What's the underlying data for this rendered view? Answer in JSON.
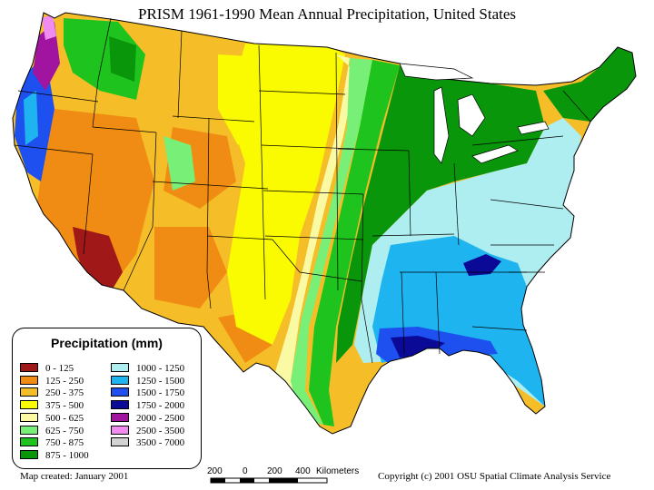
{
  "title": "PRISM 1961-1990 Mean Annual Precipitation, United States",
  "legend": {
    "title": "Precipitation (mm)",
    "items": [
      {
        "label": "0 - 125",
        "color": "#a01818"
      },
      {
        "label": "125 - 250",
        "color": "#f08c14"
      },
      {
        "label": "250 - 375",
        "color": "#f5be28"
      },
      {
        "label": "375 - 500",
        "color": "#fafa00"
      },
      {
        "label": "500 - 625",
        "color": "#fafaa5"
      },
      {
        "label": "625 - 750",
        "color": "#78f078"
      },
      {
        "label": "750 - 875",
        "color": "#1ec31e"
      },
      {
        "label": "875 - 1000",
        "color": "#0a960a"
      },
      {
        "label": "1000 - 1250",
        "color": "#afeef0"
      },
      {
        "label": "1250 - 1500",
        "color": "#1eb4f0"
      },
      {
        "label": "1500 - 1750",
        "color": "#1e50f0"
      },
      {
        "label": "1750 - 2000",
        "color": "#0a0a96"
      },
      {
        "label": "2000 - 2500",
        "color": "#a014a0"
      },
      {
        "label": "2500 - 3500",
        "color": "#f08cf0"
      },
      {
        "label": "3500 - 7000",
        "color": "#d2d2d2"
      }
    ]
  },
  "scale": {
    "ticks": [
      "200",
      "0",
      "200",
      "400"
    ],
    "unit": "Kilometers"
  },
  "footer": {
    "created": "Map created: January 2001",
    "copyright": "Copyright (c) 2001 OSU Spatial Climate Analysis Service"
  }
}
